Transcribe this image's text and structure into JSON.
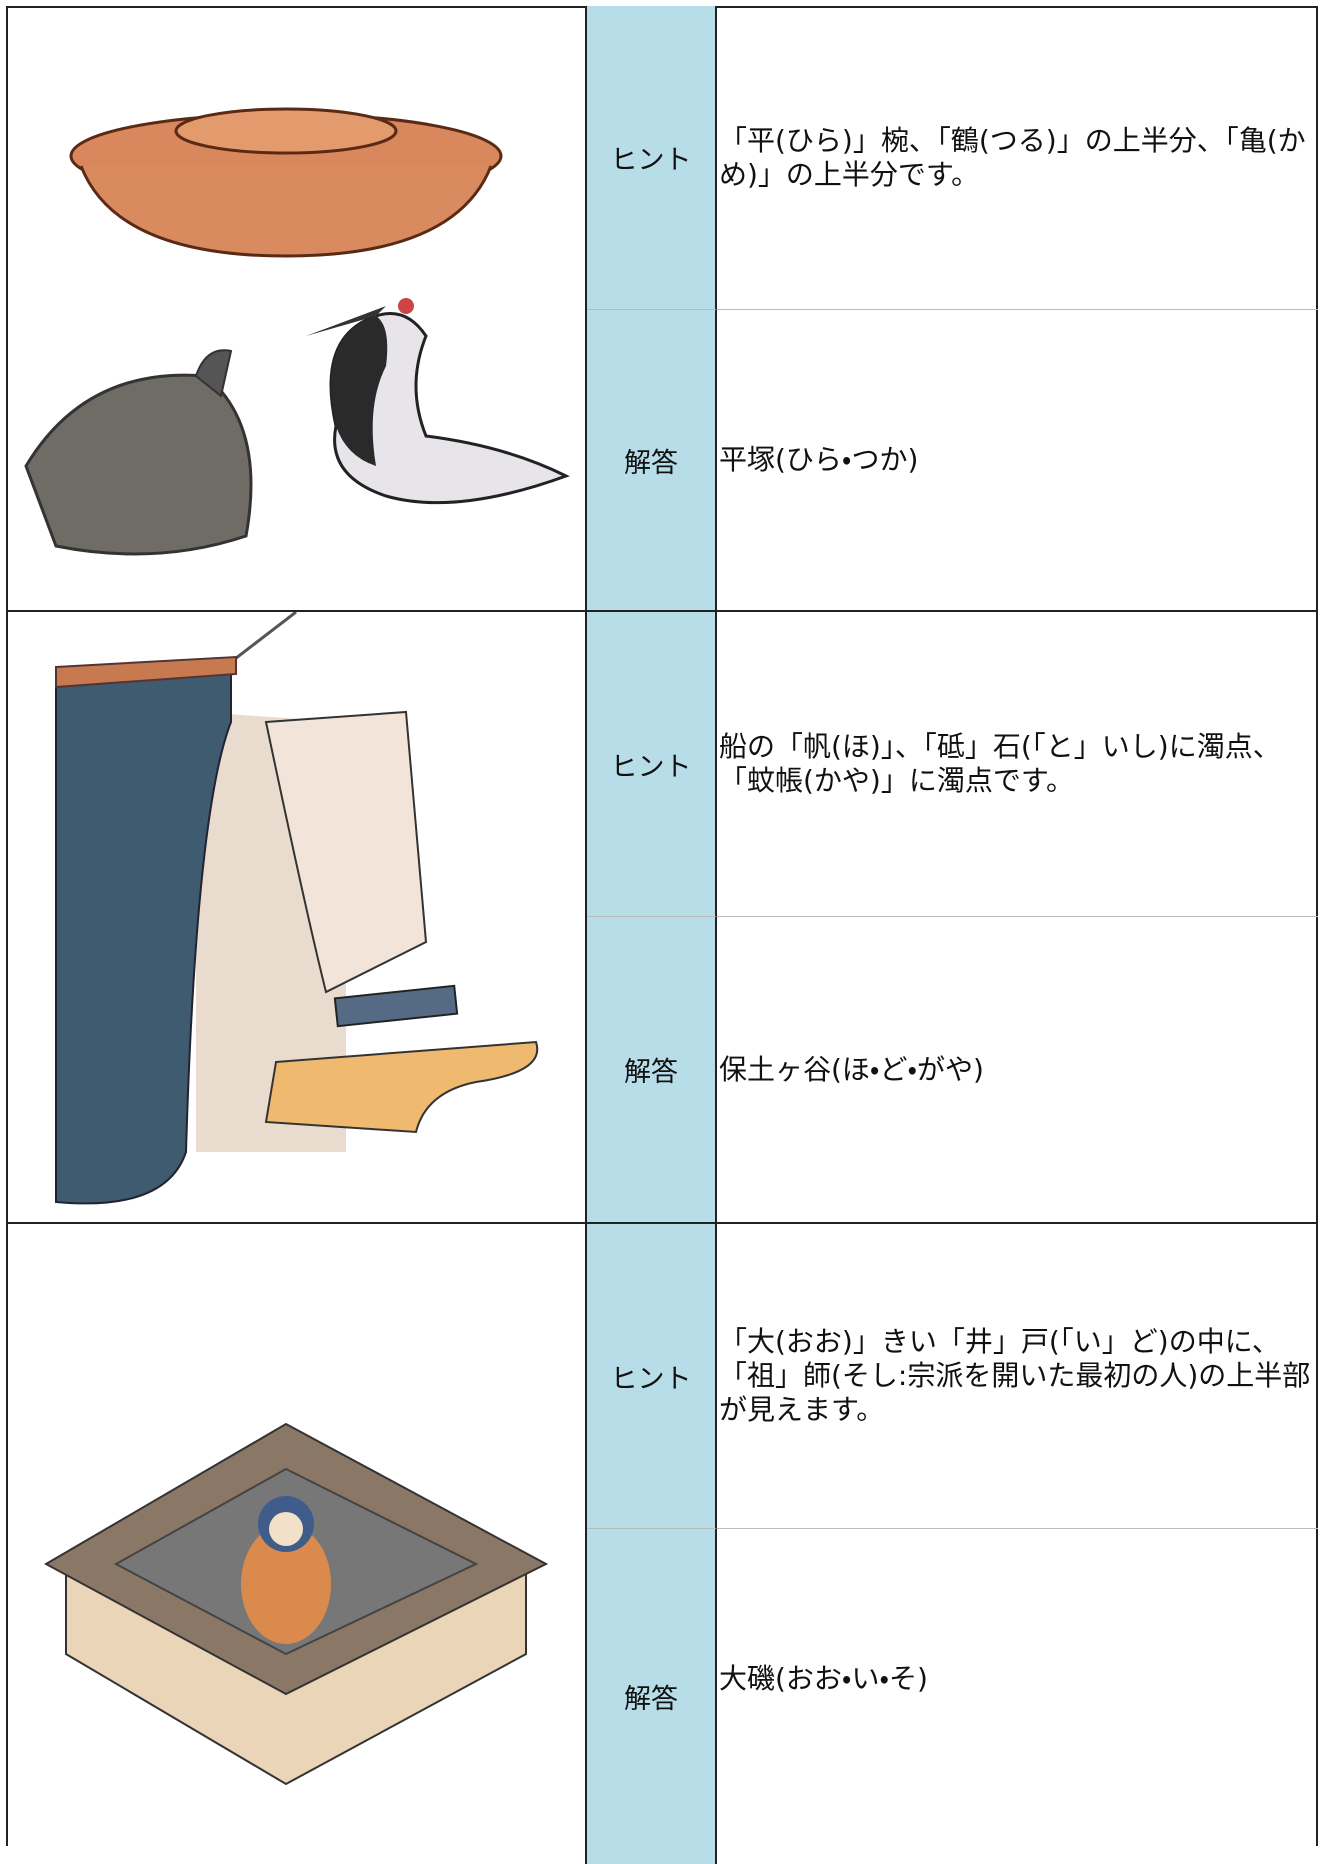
{
  "rows": [
    {
      "hint_label": "ヒント",
      "hint": "「平(ひら)」椀、「鶴(つる)」の上半分、「亀(かめ)」の上半分です。",
      "answer_label": "解答",
      "answer": "平塚(ひら・つか)"
    },
    {
      "hint_label": "ヒント",
      "hint": "船の「帆(ほ)」、「砥」石(「と」いし)に濁点、「蚊帳(かや)」に濁点です。",
      "answer_label": "解答",
      "answer": "保土ヶ谷(ほ・ど・がや)"
    },
    {
      "hint_label": "ヒント",
      "hint": "「大(おお)」きい「井」戸(「い」ど)の中に、「祖」師(そし:宗派を開いた最初の人)の上半部が見えます。",
      "answer_label": "解答",
      "answer": "大磯(おお・い・そ)"
    }
  ]
}
